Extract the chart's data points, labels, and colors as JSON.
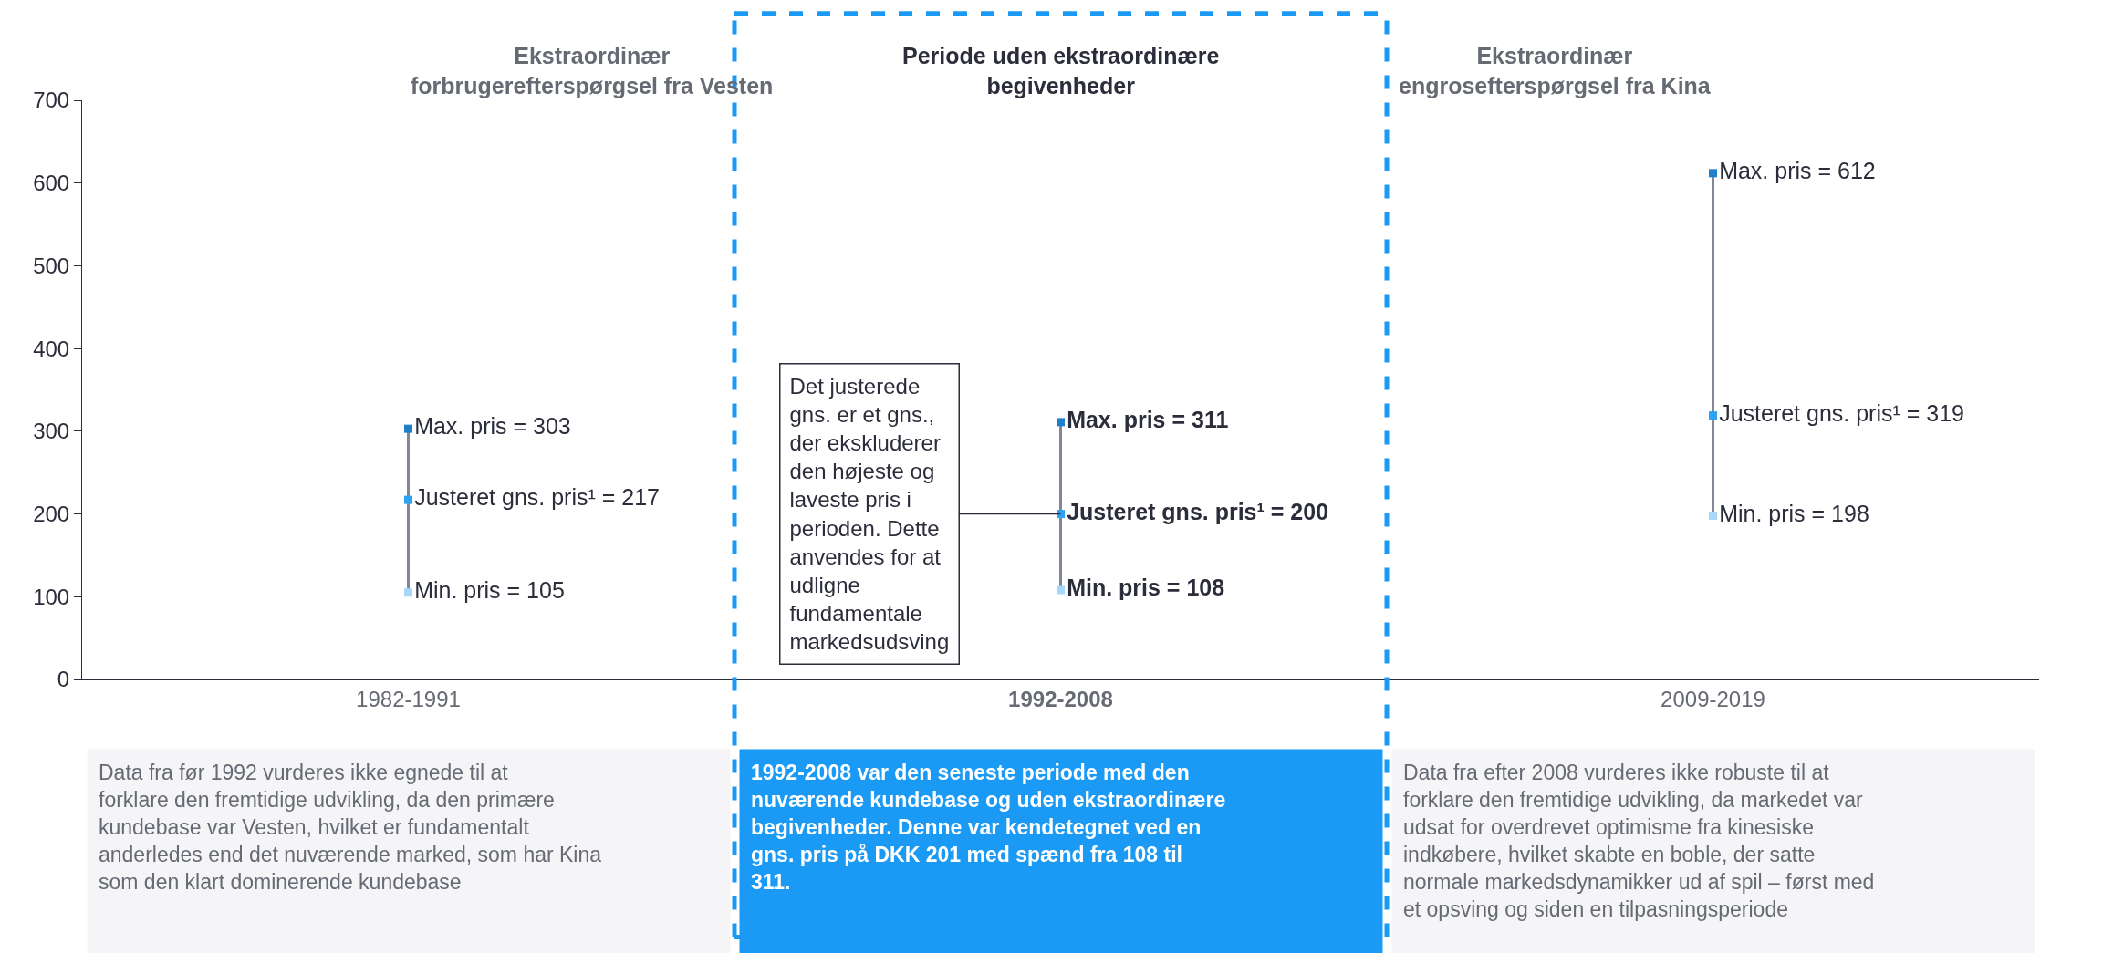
{
  "chart_data": {
    "type": "scatter",
    "categories": [
      "1982-1991",
      "1992-2008",
      "2009-2019"
    ],
    "ylim": [
      0,
      700
    ],
    "yticks": [
      0,
      100,
      200,
      300,
      400,
      500,
      600,
      700
    ],
    "series": [
      {
        "type": "bar",
        "color": "#7f8799",
        "base": [
          105,
          108,
          198
        ],
        "values": [
          198,
          203,
          414
        ]
      },
      {
        "color": "#1f7fc9",
        "values": [
          303,
          311,
          612
        ],
        "value_labels": [
          "Max. pris = 303",
          "Max. pris = 311",
          "Max. pris = 612"
        ]
      },
      {
        "color": "#2ea3f2",
        "values": [
          217,
          200,
          319
        ],
        "value_labels": [
          "Justeret gns. pris¹ = 217",
          "Justeret gns. pris¹ = 200",
          "Justeret gns. pris¹ = 319"
        ]
      },
      {
        "color": "#a8d8f8",
        "values": [
          105,
          108,
          198
        ],
        "value_labels": [
          "Min. pris = 105",
          "Min. pris = 108",
          "Min. pris = 198"
        ]
      }
    ],
    "annotations": [
      "Ekstraordinær forbrugerefterspørgsel fra Vesten",
      "Periode uden ekstraordinære begivenheder",
      "Ekstraordinær engrosefterspørgsel fra Kina",
      "Det justerede gns. er et gns., der ekskluderer den højeste og laveste pris i perioden. Dette anvendes for at udligne fundamentale markedsudsving",
      "Data fra før 1992 vurderes ikke egnede til at forklare den fremtidige udvikling, da den primære kundebase var Vesten, hvilket er fundamentalt anderledes end det nuværende marked, som har Kina som den klart dominerende kundebase",
      "1992-2008 var den seneste periode med den nuværende kundebase og uden ekstraordinære begivenheder. Denne var kendetegnet ved en gns. pris på DKK 201 med spænd fra 108 til 311.",
      "Data fra efter 2008 vurderes ikke robuste til at forklare den fremtidige udvikling, da markedet var udsat for overdrevet optimisme fra kinesiske indkøbere, hvilket skabte en boble, der satte normale markedsdynamikker ud af spil – først med et opsving og siden en tilpasningsperiode"
    ]
  }
}
